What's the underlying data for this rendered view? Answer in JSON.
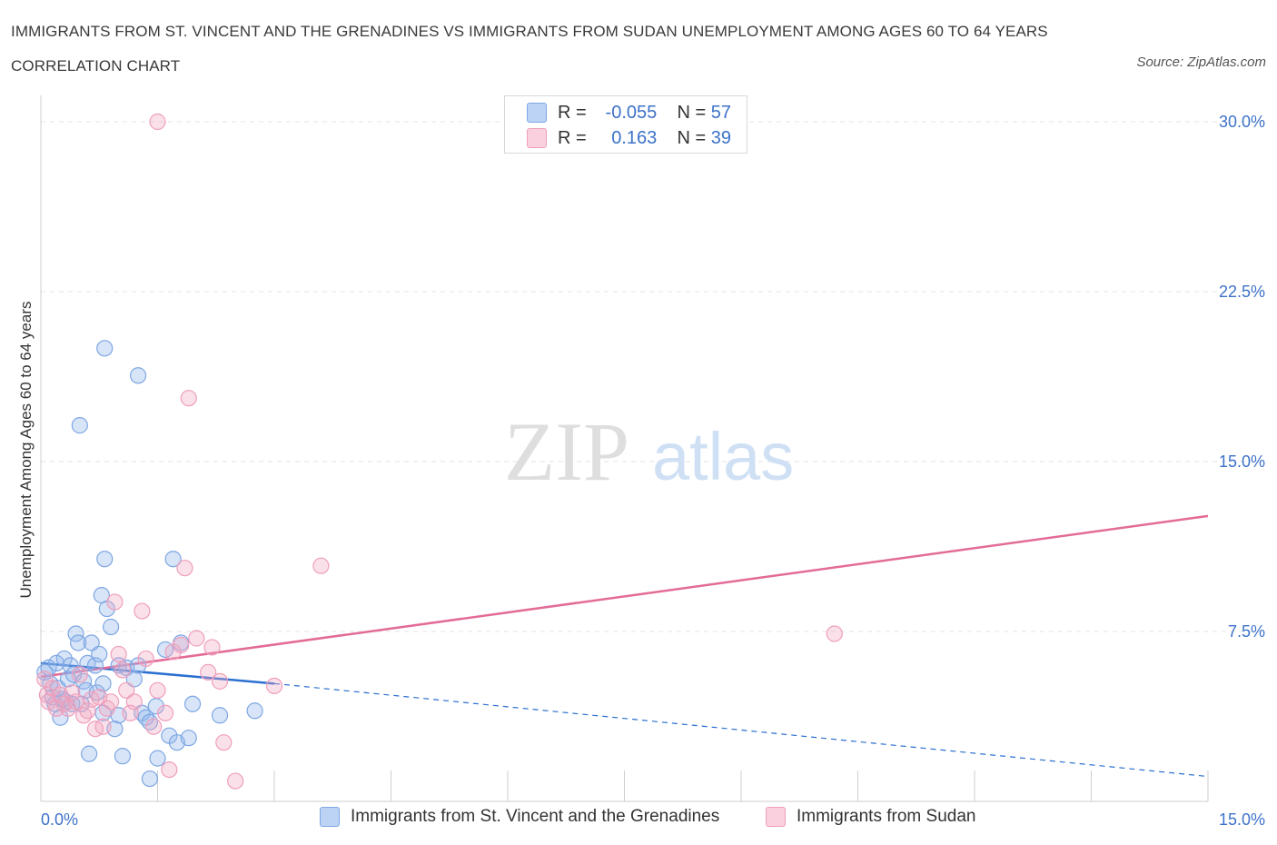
{
  "title": "IMMIGRANTS FROM ST. VINCENT AND THE GRENADINES VS IMMIGRANTS FROM SUDAN UNEMPLOYMENT AMONG AGES 60 TO 64 YEARS CORRELATION CHART",
  "source": "Source: ZipAtlas.com",
  "watermark": {
    "zip": "ZIP",
    "atlas": "atlas"
  },
  "legend": {
    "rows": [
      {
        "r_label": "R =",
        "r_value": "-0.055",
        "n_label": "N =",
        "n_value": "57"
      },
      {
        "r_label": "R =",
        "r_value": "0.163",
        "n_label": "N =",
        "n_value": "39"
      }
    ]
  },
  "chart_data": {
    "type": "scatter",
    "xlabel": "",
    "ylabel": "Unemployment Among Ages 60 to 64 years",
    "xlim": [
      0,
      15
    ],
    "ylim": [
      0,
      30
    ],
    "x_tick_labels": [
      "0.0%",
      "15.0%"
    ],
    "y_ticks": [
      7.5,
      15,
      22.5,
      30
    ],
    "y_tick_labels": [
      "7.5%",
      "15.0%",
      "22.5%",
      "30.0%"
    ],
    "grid": true,
    "colors": {
      "blue": "#8fb4ea",
      "blue_line": "#2a6fd1",
      "pink": "#f2a6c0",
      "pink_line": "#e36b97",
      "tick_text": "#3d72c9"
    },
    "series": [
      {
        "name": "Immigrants from St. Vincent and the Grenadines",
        "color": "blue",
        "points": [
          [
            0.05,
            5.7
          ],
          [
            0.1,
            5.9
          ],
          [
            0.12,
            5.2
          ],
          [
            0.15,
            4.6
          ],
          [
            0.18,
            4.3
          ],
          [
            0.2,
            6.1
          ],
          [
            0.22,
            5.0
          ],
          [
            0.25,
            3.7
          ],
          [
            0.28,
            4.5
          ],
          [
            0.3,
            6.3
          ],
          [
            0.32,
            4.4
          ],
          [
            0.35,
            5.4
          ],
          [
            0.38,
            6.0
          ],
          [
            0.4,
            4.3
          ],
          [
            0.42,
            5.6
          ],
          [
            0.45,
            7.4
          ],
          [
            0.48,
            7.0
          ],
          [
            0.5,
            16.6
          ],
          [
            0.52,
            4.3
          ],
          [
            0.55,
            5.3
          ],
          [
            0.58,
            4.9
          ],
          [
            0.6,
            6.1
          ],
          [
            0.62,
            2.1
          ],
          [
            0.65,
            7.0
          ],
          [
            0.7,
            6.0
          ],
          [
            0.72,
            4.8
          ],
          [
            0.75,
            6.5
          ],
          [
            0.78,
            9.1
          ],
          [
            0.8,
            5.2
          ],
          [
            0.82,
            10.7
          ],
          [
            0.85,
            8.5
          ],
          [
            0.9,
            7.7
          ],
          [
            0.95,
            3.2
          ],
          [
            1.0,
            3.8
          ],
          [
            1.0,
            6.0
          ],
          [
            1.05,
            2.0
          ],
          [
            1.1,
            5.9
          ],
          [
            1.2,
            5.4
          ],
          [
            1.25,
            6.0
          ],
          [
            1.3,
            3.9
          ],
          [
            1.35,
            3.7
          ],
          [
            1.4,
            1.0
          ],
          [
            1.48,
            4.2
          ],
          [
            0.82,
            20.0
          ],
          [
            1.25,
            18.8
          ],
          [
            1.5,
            1.9
          ],
          [
            1.6,
            6.7
          ],
          [
            1.65,
            2.9
          ],
          [
            1.7,
            10.7
          ],
          [
            1.75,
            2.6
          ],
          [
            1.8,
            7.0
          ],
          [
            1.9,
            2.8
          ],
          [
            1.95,
            4.3
          ],
          [
            2.3,
            3.8
          ],
          [
            2.75,
            4.0
          ],
          [
            0.8,
            3.9
          ],
          [
            1.4,
            3.5
          ]
        ]
      },
      {
        "name": "Immigrants from Sudan",
        "color": "pink",
        "points": [
          [
            0.05,
            5.4
          ],
          [
            0.08,
            4.7
          ],
          [
            0.1,
            4.4
          ],
          [
            0.15,
            5.0
          ],
          [
            0.2,
            4.1
          ],
          [
            0.25,
            4.7
          ],
          [
            0.3,
            4.3
          ],
          [
            0.35,
            4.1
          ],
          [
            0.4,
            4.8
          ],
          [
            0.45,
            4.4
          ],
          [
            0.5,
            5.6
          ],
          [
            0.55,
            3.8
          ],
          [
            0.6,
            4.0
          ],
          [
            0.65,
            4.5
          ],
          [
            0.7,
            3.2
          ],
          [
            0.75,
            4.6
          ],
          [
            0.8,
            3.3
          ],
          [
            0.85,
            4.1
          ],
          [
            0.9,
            4.4
          ],
          [
            0.95,
            8.8
          ],
          [
            1.0,
            6.5
          ],
          [
            1.05,
            5.8
          ],
          [
            1.1,
            4.9
          ],
          [
            1.15,
            3.9
          ],
          [
            1.2,
            4.4
          ],
          [
            1.3,
            8.4
          ],
          [
            1.35,
            6.3
          ],
          [
            1.45,
            3.3
          ],
          [
            1.5,
            4.9
          ],
          [
            1.6,
            3.9
          ],
          [
            1.65,
            1.4
          ],
          [
            1.5,
            30.0
          ],
          [
            1.9,
            17.8
          ],
          [
            1.85,
            10.3
          ],
          [
            2.0,
            7.2
          ],
          [
            2.2,
            6.8
          ],
          [
            2.3,
            5.3
          ],
          [
            2.15,
            5.7
          ],
          [
            2.35,
            2.6
          ]
        ]
      }
    ],
    "trend_lines": [
      {
        "series": "blue",
        "solid": [
          [
            0.0,
            6.1
          ],
          [
            3.0,
            5.2
          ]
        ],
        "dashed": [
          [
            3.0,
            5.2
          ],
          [
            15.0,
            1.1
          ]
        ]
      },
      {
        "series": "pink",
        "solid": [
          [
            0.0,
            5.5
          ],
          [
            15.0,
            12.6
          ]
        ]
      }
    ],
    "extra_pink_points": [
      [
        3.6,
        10.4
      ],
      [
        10.2,
        7.4
      ],
      [
        2.5,
        0.9
      ],
      [
        3.0,
        5.1
      ],
      [
        1.7,
        6.6
      ],
      [
        1.8,
        6.9
      ]
    ]
  },
  "bottom_legend": [
    {
      "label": "Immigrants from St. Vincent and the Grenadines"
    },
    {
      "label": "Immigrants from Sudan"
    }
  ]
}
